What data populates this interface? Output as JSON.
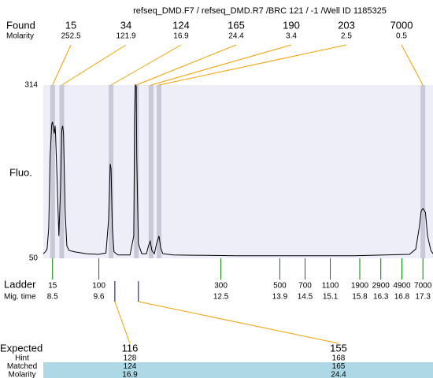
{
  "chart_data": {
    "type": "line",
    "title": "refseq_DMD.F7 / refseq_DMD.R7 /BRC 121 / -1 /Well ID 1185325",
    "y_label": "Fluo.",
    "ylim": [
      50,
      314
    ],
    "yticks": [
      50,
      314
    ],
    "xlim": [
      8.28,
      17.54
    ],
    "color": "#000000",
    "x": [
      8.28,
      8.33,
      8.37,
      8.41,
      8.44,
      8.48,
      8.5,
      8.52,
      8.54,
      8.56,
      8.57,
      8.61,
      8.65,
      8.69,
      8.72,
      8.74,
      8.76,
      8.8,
      8.84,
      8.89,
      9.02,
      9.31,
      9.59,
      9.77,
      9.83,
      9.87,
      9.89,
      9.92,
      9.96,
      10.05,
      10.34,
      10.43,
      10.45,
      10.47,
      10.49,
      10.5,
      10.54,
      10.62,
      10.73,
      10.78,
      10.82,
      10.86,
      10.92,
      10.97,
      11.03,
      11.07,
      11.12,
      11.37,
      12.86,
      15.67,
      16.98,
      17.13,
      17.21,
      17.26,
      17.3,
      17.36,
      17.41,
      17.49,
      17.54
    ],
    "values": [
      57,
      60,
      64,
      96,
      204,
      254,
      258,
      249,
      240,
      252,
      242,
      168,
      84,
      156,
      246,
      252,
      240,
      120,
      69,
      62,
      60,
      57,
      56,
      58,
      108,
      194,
      186,
      96,
      60,
      55,
      55,
      84,
      264,
      314,
      312,
      204,
      72,
      57,
      57,
      69,
      76,
      62,
      57,
      72,
      84,
      66,
      57,
      55,
      54,
      54,
      56,
      64,
      96,
      122,
      126,
      120,
      84,
      62,
      57
    ],
    "found": {
      "label": "Found",
      "sub_label": "Molarity",
      "sizes": [
        15,
        34,
        124,
        165,
        190,
        203,
        7000
      ],
      "molarity": [
        252.5,
        121.9,
        16.9,
        24.4,
        3.4,
        2.5,
        0.5
      ],
      "times": [
        8.5,
        8.72,
        9.89,
        10.49,
        10.84,
        11.03,
        17.3
      ]
    },
    "ladder": {
      "label": "Ladder",
      "sub_label": "Mig. time",
      "sizes": [
        15,
        100,
        300,
        500,
        700,
        1100,
        1900,
        2900,
        4900,
        7000
      ],
      "times": [
        8.5,
        9.6,
        12.5,
        13.9,
        14.5,
        15.1,
        15.8,
        16.3,
        16.8,
        17.3
      ]
    },
    "expected": {
      "label": "Expected",
      "sizes": [
        116,
        155
      ],
      "times": [
        9.98,
        10.54
      ],
      "rows": [
        {
          "label": "Hint",
          "values": [
            128,
            168
          ]
        },
        {
          "label": "Matched",
          "values": [
            124,
            165
          ]
        },
        {
          "label": "Molarity",
          "values": [
            16.9,
            24.4
          ]
        }
      ]
    }
  }
}
